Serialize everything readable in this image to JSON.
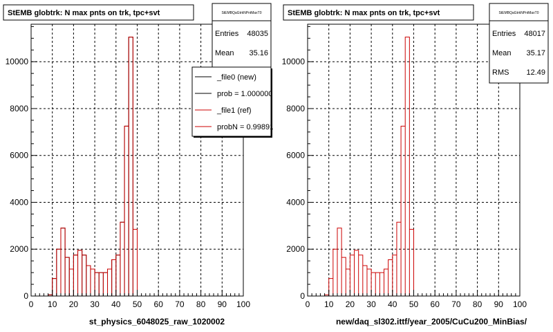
{
  "chart_data": [
    {
      "type": "bar",
      "title": "StEMB globtrk: N max pnts on trk, tpc+svt",
      "xlabel": "st_physics_6048025_raw_1020002",
      "ylabel": "",
      "xlim": [
        0,
        100
      ],
      "ylim": [
        0,
        11600
      ],
      "xticks": [
        0,
        10,
        20,
        30,
        40,
        50,
        60,
        70,
        80,
        90,
        100
      ],
      "yticks": [
        0,
        2000,
        4000,
        6000,
        8000,
        10000
      ],
      "grid": true,
      "bin_width": 2,
      "x": [
        9,
        11,
        13,
        15,
        17,
        19,
        21,
        23,
        25,
        27,
        29,
        31,
        33,
        35,
        37,
        39,
        41,
        43,
        45,
        47,
        49
      ],
      "series": [
        {
          "name": "_file0 (new)",
          "color": "#000000",
          "values": [
            50,
            750,
            2000,
            2900,
            1650,
            1150,
            1750,
            1950,
            1750,
            1300,
            1150,
            1000,
            1000,
            1000,
            1150,
            1550,
            1750,
            3150,
            7250,
            11050,
            2850
          ]
        },
        {
          "name": "_file1 (ref)",
          "color": "#cc0000",
          "values": [
            50,
            750,
            2000,
            2900,
            1650,
            1150,
            1750,
            1950,
            1750,
            1300,
            1150,
            1000,
            1000,
            1000,
            1150,
            1550,
            1750,
            3150,
            7250,
            11050,
            2850
          ]
        }
      ],
      "stats_box": {
        "name": "StEMBQaGtrkNPntMaxT0",
        "entries_label": "Entries",
        "entries": "48035",
        "mean_label": "Mean",
        "mean": "35.16"
      },
      "legend": {
        "placement": "top-right",
        "entries": [
          {
            "label": "_file0 (new)",
            "color": "#000000"
          },
          {
            "label": "prob = 1.000000",
            "color": "#000000"
          },
          {
            "label": "_file1 (ref)",
            "color": "#cc0000"
          },
          {
            "label": "probN = 0.998914",
            "color": "#cc0000"
          }
        ]
      }
    },
    {
      "type": "bar",
      "title": "StEMB globtrk: N max pnts on trk, tpc+svt",
      "xlabel": "new/daq_sl302.ittf/year_2005/CuCu200_MinBias/",
      "ylabel": "",
      "xlim": [
        0,
        100
      ],
      "ylim": [
        0,
        11600
      ],
      "xticks": [
        0,
        10,
        20,
        30,
        40,
        50,
        60,
        70,
        80,
        90,
        100
      ],
      "yticks": [
        0,
        2000,
        4000,
        6000,
        8000,
        10000
      ],
      "grid": true,
      "bin_width": 2,
      "x": [
        9,
        11,
        13,
        15,
        17,
        19,
        21,
        23,
        25,
        27,
        29,
        31,
        33,
        35,
        37,
        39,
        41,
        43,
        45,
        47,
        49
      ],
      "series": [
        {
          "color": "#cc0000",
          "values": [
            50,
            750,
            2000,
            2900,
            1650,
            1150,
            1750,
            1950,
            1750,
            1300,
            1150,
            1000,
            1000,
            1000,
            1150,
            1550,
            1750,
            3150,
            7250,
            11050,
            2850
          ]
        }
      ],
      "stats_box": {
        "name": "StEMBQaGtrkNPntMaxT0",
        "entries_label": "Entries",
        "entries": "48017",
        "mean_label": "Mean",
        "mean": "35.17",
        "rms_label": "RMS",
        "rms": "12.49"
      }
    }
  ]
}
